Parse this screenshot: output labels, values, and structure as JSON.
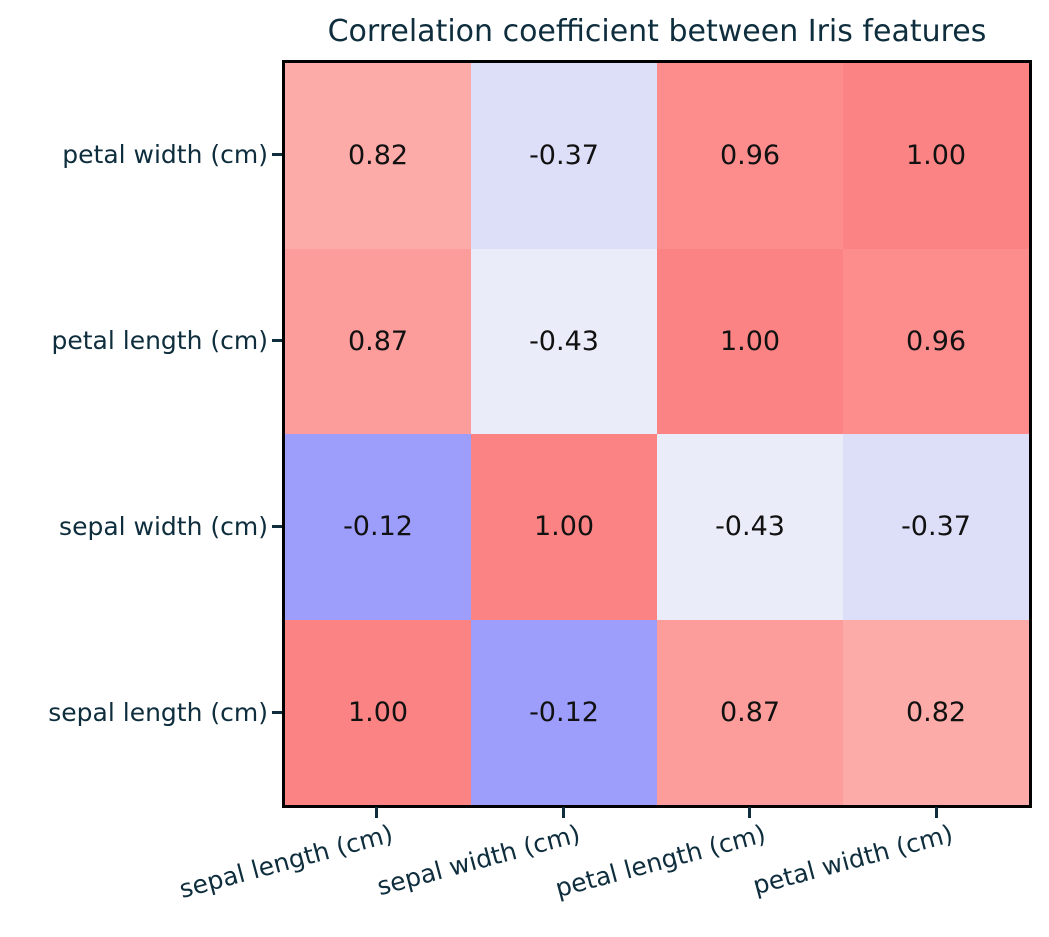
{
  "figure": {
    "background": "#ffffff",
    "border_color": "#000000",
    "label_color": "#0e2d3d",
    "value_text_color": "#111111"
  },
  "chart_data": {
    "type": "heatmap",
    "title": "Correlation coefficient between Iris features",
    "x_labels": [
      "sepal length (cm)",
      "sepal width (cm)",
      "petal length (cm)",
      "petal width (cm)"
    ],
    "y_labels_top_to_bottom": [
      "petal width (cm)",
      "petal length (cm)",
      "sepal width (cm)",
      "sepal length (cm)"
    ],
    "x_tick_label_rotation_deg": 15,
    "legend": "none",
    "grid": "off",
    "colormap": "diverging red (positive) / blue-lavender (negative)",
    "value_range": [
      -0.43,
      1.0
    ],
    "rows": [
      {
        "y_label": "petal width (cm)",
        "values": [
          0.82,
          -0.37,
          0.96,
          1.0
        ],
        "display": [
          "0.82",
          "-0.37",
          "0.96",
          "1.00"
        ],
        "colors": [
          "#FCABA8",
          "#DDDEF8",
          "#FD8D8D",
          "#FC8383"
        ]
      },
      {
        "y_label": "petal length (cm)",
        "values": [
          0.87,
          -0.43,
          1.0,
          0.96
        ],
        "display": [
          "0.87",
          "-0.43",
          "1.00",
          "0.96"
        ],
        "colors": [
          "#FC9D9B",
          "#EBECF9",
          "#FC8383",
          "#FD8D8D"
        ]
      },
      {
        "y_label": "sepal width (cm)",
        "values": [
          -0.12,
          1.0,
          -0.43,
          -0.37
        ],
        "display": [
          "-0.12",
          "1.00",
          "-0.43",
          "-0.37"
        ],
        "colors": [
          "#9D9DFB",
          "#FC8383",
          "#EBECF9",
          "#DDDEF8"
        ]
      },
      {
        "y_label": "sepal length (cm)",
        "values": [
          1.0,
          -0.12,
          0.87,
          0.82
        ],
        "display": [
          "1.00",
          "-0.12",
          "0.87",
          "0.82"
        ],
        "colors": [
          "#FC8383",
          "#9D9DFB",
          "#FC9D9B",
          "#FCABA8"
        ]
      }
    ]
  }
}
